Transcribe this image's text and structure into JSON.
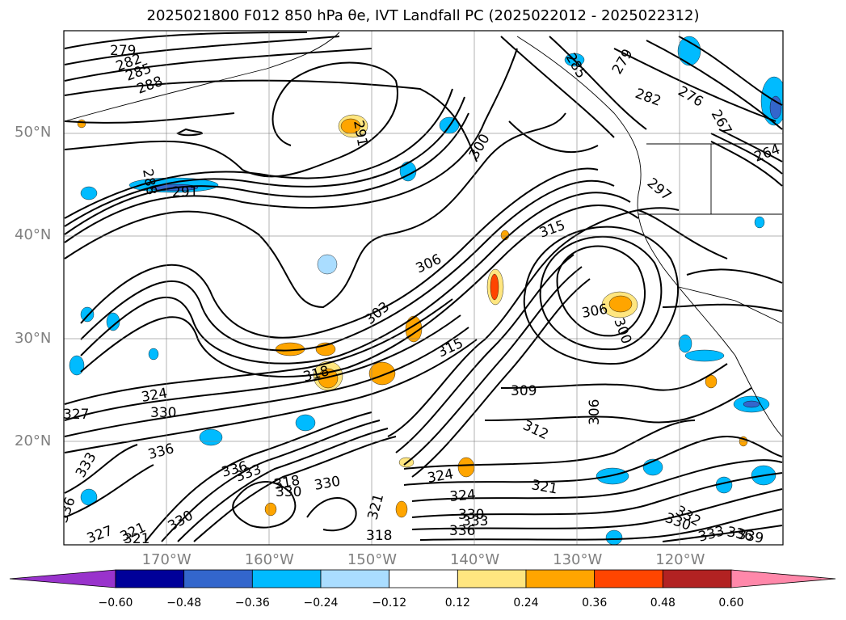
{
  "title": "2025021800 F012 850 hPa θe, IVT Landfall PC (2025022012 - 2025022312)",
  "map": {
    "lat_labels": [
      {
        "text": "50°N",
        "lat": 50
      },
      {
        "text": "40°N",
        "lat": 40
      },
      {
        "text": "30°N",
        "lat": 30
      },
      {
        "text": "20°N",
        "lat": 20
      }
    ],
    "lon_labels": [
      {
        "text": "170°W",
        "lon": -170
      },
      {
        "text": "160°W",
        "lon": -160
      },
      {
        "text": "150°W",
        "lon": -150
      },
      {
        "text": "140°W",
        "lon": -140
      },
      {
        "text": "130°W",
        "lon": -130
      },
      {
        "text": "120°W",
        "lon": -120
      }
    ],
    "extent": {
      "lon_min": -180,
      "lon_max": -110,
      "lat_min": 10,
      "lat_max": 60
    },
    "grid": true
  },
  "contour_labels": [
    "279",
    "282",
    "285",
    "288",
    "291",
    "288",
    "291",
    "300",
    "306",
    "303",
    "315",
    "318",
    "315",
    "309",
    "312",
    "306",
    "306",
    "300",
    "321",
    "324",
    "330",
    "327",
    "336",
    "333",
    "330",
    "321",
    "336",
    "333",
    "336",
    "330",
    "318",
    "330",
    "324",
    "324",
    "330",
    "333",
    "336",
    "330",
    "332",
    "336",
    "339",
    "333",
    "321",
    "318",
    "327",
    "321",
    "285",
    "279",
    "282",
    "276",
    "297",
    "264",
    "267"
  ],
  "colorbar": {
    "ticks": [
      "−0.60",
      "−0.48",
      "−0.36",
      "−0.24",
      "−0.12",
      "0.12",
      "0.24",
      "0.36",
      "0.48",
      "0.60"
    ],
    "colors": [
      "#9933cc",
      "#000099",
      "#3366cc",
      "#00bbff",
      "#aaddff",
      "#ffffff",
      "#ffe680",
      "#ffa500",
      "#ff4500",
      "#b22222",
      "#ff88aa"
    ]
  }
}
